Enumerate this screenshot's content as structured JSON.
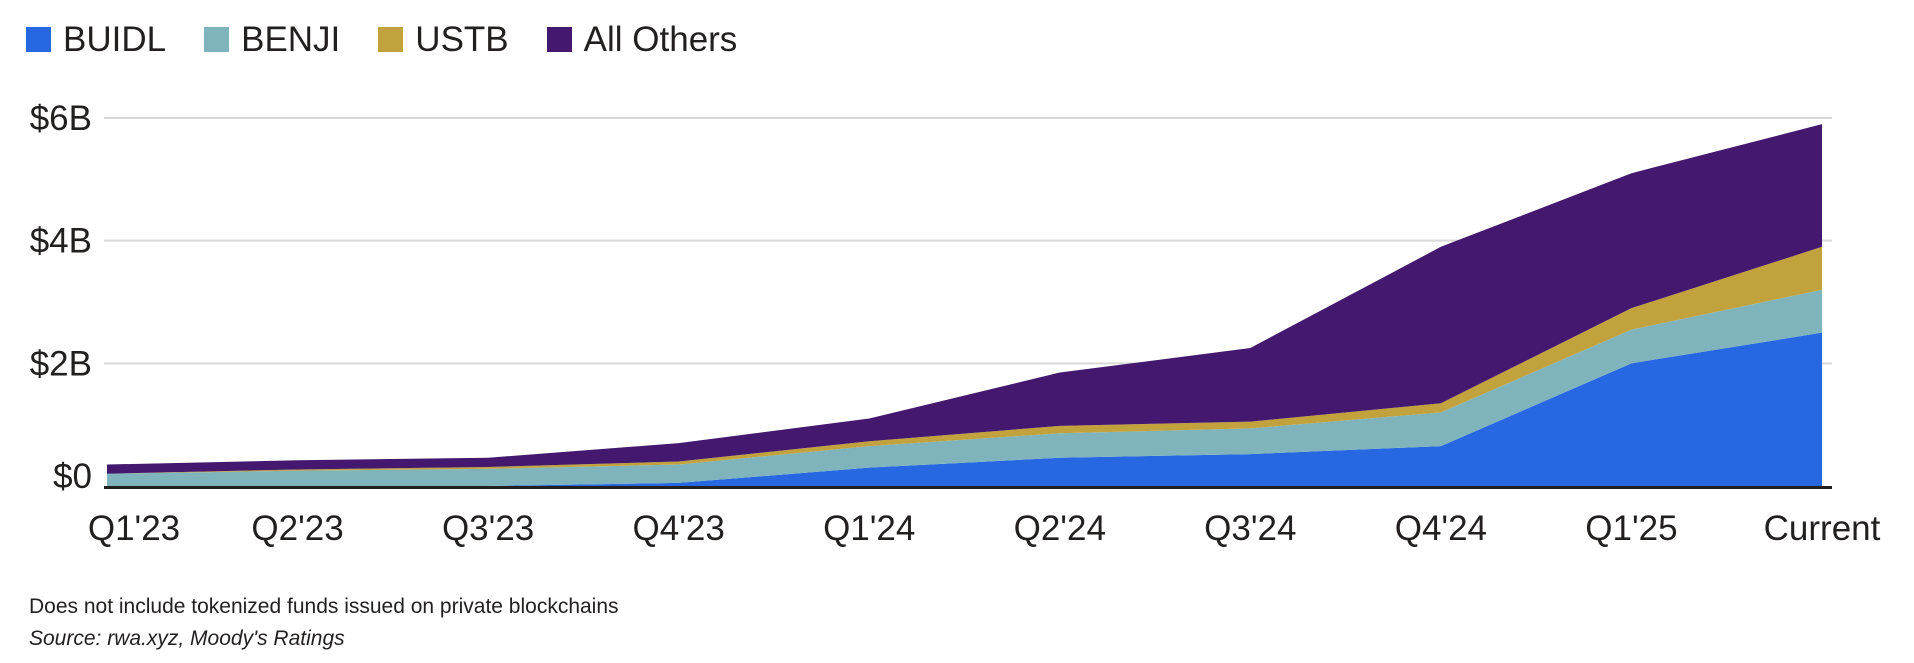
{
  "footnotes": {
    "note": "Does not include tokenized funds issued on private blockchains",
    "source": "Source: rwa.xyz, Moody's Ratings"
  },
  "colors": {
    "text": "#221f1f",
    "gridline": "#d9d9d9",
    "axis": "#221f1f",
    "background": "#ffffff"
  },
  "chart_data": {
    "type": "area",
    "stacked": true,
    "title": "",
    "xlabel": "",
    "ylabel": "",
    "unit": "USD billions",
    "grid": "horizontal",
    "legend_position": "top-left",
    "ylim": [
      0,
      6
    ],
    "y_ticks": [
      {
        "value": 0,
        "label": "$0"
      },
      {
        "value": 2,
        "label": "$2B"
      },
      {
        "value": 4,
        "label": "$4B"
      },
      {
        "value": 6,
        "label": "$6B"
      }
    ],
    "categories": [
      "Q1'23",
      "Q2'23",
      "Q3'23",
      "Q4'23",
      "Q1'24",
      "Q2'24",
      "Q3'24",
      "Q4'24",
      "Q1'25",
      "Current"
    ],
    "series": [
      {
        "name": "BUIDL",
        "color": "#2767E2",
        "values": [
          0.0,
          0.0,
          0.0,
          0.05,
          0.3,
          0.46,
          0.52,
          0.65,
          2.0,
          2.5
        ]
      },
      {
        "name": "BENJI",
        "color": "#7FB4BC",
        "values": [
          0.2,
          0.25,
          0.28,
          0.3,
          0.35,
          0.4,
          0.42,
          0.55,
          0.55,
          0.7
        ]
      },
      {
        "name": "USTB",
        "color": "#C2A23C",
        "values": [
          0.0,
          0.02,
          0.03,
          0.05,
          0.08,
          0.12,
          0.11,
          0.15,
          0.35,
          0.7
        ]
      },
      {
        "name": "All Others",
        "color": "#44186F",
        "values": [
          0.15,
          0.15,
          0.15,
          0.3,
          0.37,
          0.87,
          1.2,
          2.55,
          2.2,
          2.0
        ]
      }
    ],
    "totals": [
      0.35,
      0.42,
      0.46,
      0.7,
      1.1,
      1.85,
      2.25,
      3.9,
      5.1,
      5.9
    ]
  }
}
